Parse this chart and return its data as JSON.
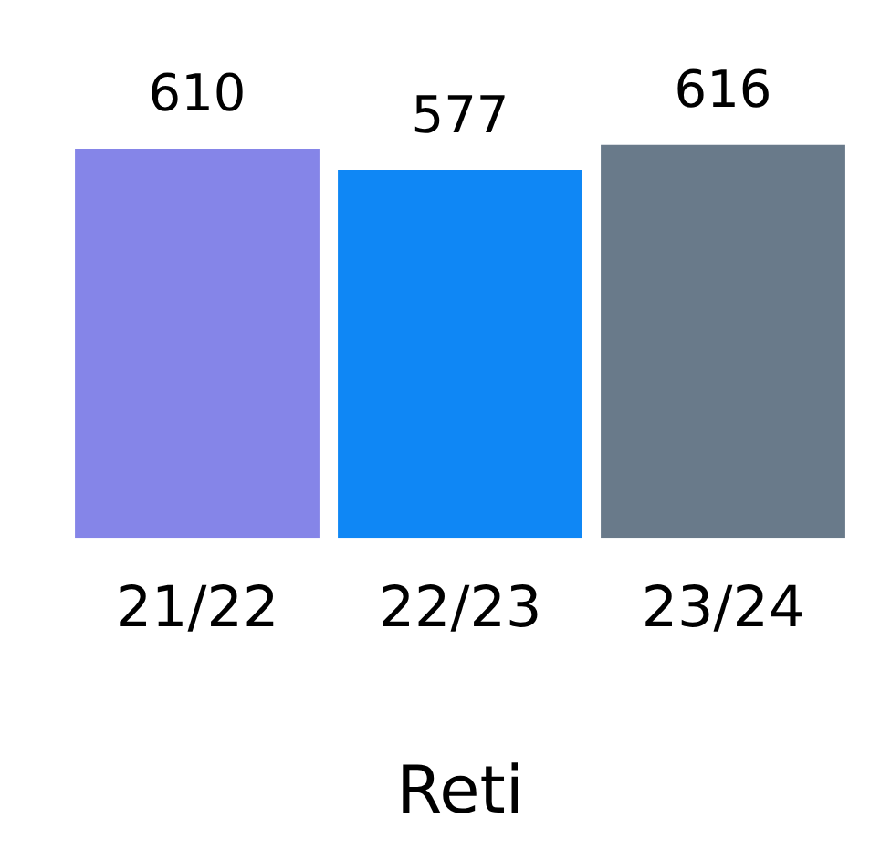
{
  "chart_data": {
    "type": "bar",
    "xlabel": "Reti",
    "categories": [
      "21/22",
      "22/23",
      "23/24"
    ],
    "values": [
      610,
      577,
      616
    ],
    "colors": [
      "#8585e8",
      "#0f87f5",
      "#697a8a"
    ],
    "tick_labels": "x",
    "grid": false,
    "legend": false,
    "data_labels": true
  }
}
